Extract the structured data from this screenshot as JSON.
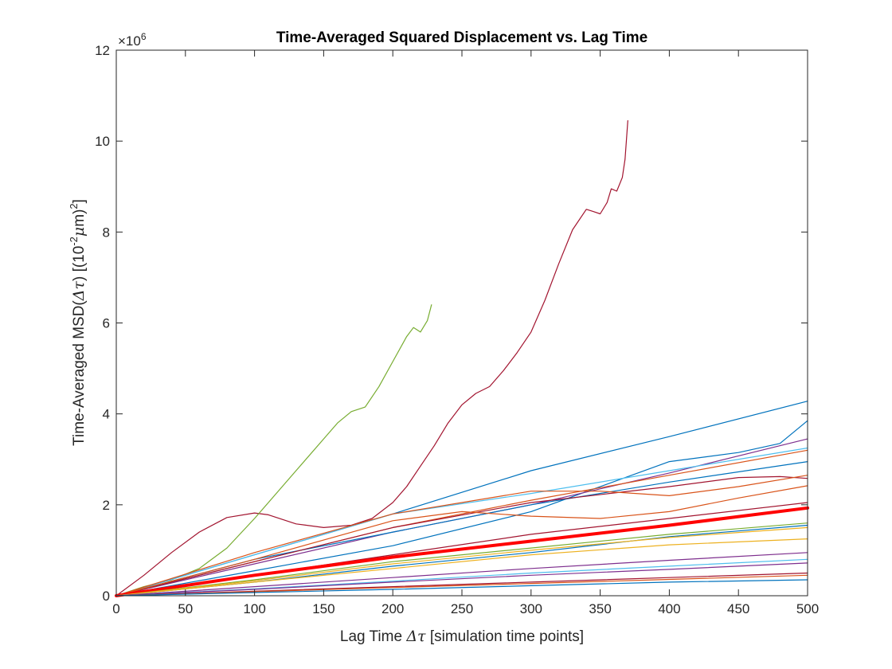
{
  "chart_data": {
    "type": "line",
    "title": "Time-Averaged Squared Displacement vs. Lag Time",
    "xlabel_parts": {
      "pre": "Lag Time ",
      "sym": "Δτ",
      "post": " [simulation time points]"
    },
    "ylabel_parts": {
      "pre": "Time-Averaged MSD(",
      "sym": "Δτ",
      "mid": ") [(10",
      "sup1": "-2",
      "mu": "μ",
      "m": "m)",
      "sup2": "2",
      "end": "]"
    },
    "y_exponent_label": {
      "base": "×10",
      "exp": "6"
    },
    "xlim": [
      0,
      500
    ],
    "ylim": [
      0,
      12
    ],
    "y_scale_factor": 1000000,
    "x_ticks": [
      0,
      50,
      100,
      150,
      200,
      250,
      300,
      350,
      400,
      450,
      500
    ],
    "y_ticks": [
      0,
      2,
      4,
      6,
      8,
      10,
      12
    ],
    "grid": false,
    "series": [
      {
        "color": "#A2142F",
        "width": 1.2,
        "x": [
          0,
          20,
          40,
          60,
          80,
          100,
          110,
          130,
          150,
          170,
          185,
          200,
          210,
          220,
          230,
          240,
          250,
          260,
          270,
          280,
          290,
          300,
          310,
          320,
          330,
          340,
          345,
          350,
          355,
          358,
          362,
          366,
          368,
          370
        ],
        "y": [
          0,
          0.45,
          0.95,
          1.4,
          1.72,
          1.82,
          1.78,
          1.58,
          1.5,
          1.55,
          1.7,
          2.05,
          2.4,
          2.85,
          3.3,
          3.8,
          4.2,
          4.45,
          4.6,
          4.95,
          5.35,
          5.8,
          6.5,
          7.3,
          8.05,
          8.5,
          8.45,
          8.4,
          8.65,
          8.95,
          8.9,
          9.2,
          9.6,
          10.45
        ]
      },
      {
        "color": "#77AC30",
        "width": 1.2,
        "x": [
          0,
          20,
          40,
          60,
          80,
          100,
          110,
          130,
          150,
          160,
          170,
          180,
          190,
          200,
          210,
          215,
          220,
          225,
          228
        ],
        "y": [
          0,
          0.2,
          0.35,
          0.6,
          1.05,
          1.7,
          2.05,
          2.75,
          3.45,
          3.8,
          4.05,
          4.15,
          4.6,
          5.15,
          5.7,
          5.9,
          5.8,
          6.05,
          6.4
        ]
      },
      {
        "color": "#0072BD",
        "width": 1.2,
        "x": [
          0,
          100,
          200,
          300,
          400,
          500
        ],
        "y": [
          0,
          0.9,
          1.8,
          2.75,
          3.5,
          4.28
        ]
      },
      {
        "color": "#0072BD",
        "width": 1.2,
        "x": [
          0,
          100,
          200,
          300,
          400,
          450,
          480,
          500
        ],
        "y": [
          0,
          0.55,
          1.1,
          1.85,
          2.95,
          3.15,
          3.35,
          3.85
        ]
      },
      {
        "color": "#7E2F8E",
        "width": 1.2,
        "x": [
          0,
          100,
          200,
          300,
          400,
          500
        ],
        "y": [
          0,
          0.7,
          1.4,
          2.0,
          2.7,
          3.45
        ]
      },
      {
        "color": "#4DBEEE",
        "width": 1.2,
        "x": [
          0,
          100,
          200,
          300,
          400,
          500
        ],
        "y": [
          0,
          0.9,
          1.8,
          2.25,
          2.75,
          3.25
        ]
      },
      {
        "color": "#D95319",
        "width": 1.2,
        "x": [
          0,
          100,
          200,
          300,
          400,
          500
        ],
        "y": [
          0,
          0.75,
          1.5,
          2.1,
          2.65,
          3.2
        ]
      },
      {
        "color": "#0072BD",
        "width": 1.2,
        "x": [
          0,
          100,
          200,
          300,
          400,
          500
        ],
        "y": [
          0,
          0.8,
          1.4,
          2.0,
          2.5,
          2.95
        ]
      },
      {
        "color": "#A2142F",
        "width": 1.2,
        "x": [
          0,
          100,
          200,
          300,
          400,
          450,
          480,
          500
        ],
        "y": [
          0,
          0.75,
          1.5,
          2.05,
          2.4,
          2.6,
          2.62,
          2.58
        ]
      },
      {
        "color": "#D95319",
        "width": 1.2,
        "x": [
          0,
          100,
          200,
          250,
          300,
          350,
          400,
          450,
          500
        ],
        "y": [
          0,
          0.95,
          1.8,
          2.05,
          2.3,
          2.3,
          2.2,
          2.4,
          2.65
        ]
      },
      {
        "color": "#D95319",
        "width": 1.2,
        "x": [
          0,
          100,
          200,
          250,
          300,
          350,
          400,
          450,
          500
        ],
        "y": [
          0,
          0.8,
          1.65,
          1.85,
          1.75,
          1.7,
          1.85,
          2.15,
          2.42
        ]
      },
      {
        "color": "#A2142F",
        "width": 1.2,
        "x": [
          0,
          100,
          200,
          300,
          400,
          500
        ],
        "y": [
          0,
          0.45,
          0.9,
          1.35,
          1.7,
          2.05
        ]
      },
      {
        "color": "#FF0000",
        "width": 4,
        "x": [
          0,
          100,
          200,
          300,
          400,
          500
        ],
        "y": [
          0,
          0.45,
          0.85,
          1.2,
          1.55,
          1.93
        ]
      },
      {
        "color": "#77AC30",
        "width": 1.2,
        "x": [
          0,
          100,
          200,
          300,
          400,
          500
        ],
        "y": [
          0,
          0.35,
          0.75,
          1.05,
          1.35,
          1.6
        ]
      },
      {
        "color": "#0072BD",
        "width": 1.2,
        "x": [
          0,
          100,
          200,
          300,
          400,
          500
        ],
        "y": [
          0,
          0.3,
          0.65,
          0.95,
          1.3,
          1.55
        ]
      },
      {
        "color": "#EDB120",
        "width": 1.2,
        "x": [
          0,
          100,
          200,
          300,
          400,
          500
        ],
        "y": [
          0,
          0.33,
          0.7,
          1.0,
          1.28,
          1.5
        ]
      },
      {
        "color": "#EDB120",
        "width": 1.2,
        "x": [
          0,
          100,
          200,
          300,
          400,
          500
        ],
        "y": [
          0,
          0.3,
          0.6,
          0.9,
          1.12,
          1.25
        ]
      },
      {
        "color": "#7E2F8E",
        "width": 1.2,
        "x": [
          0,
          100,
          200,
          300,
          400,
          500
        ],
        "y": [
          0,
          0.2,
          0.4,
          0.6,
          0.78,
          0.95
        ]
      },
      {
        "color": "#4DBEEE",
        "width": 1.2,
        "x": [
          0,
          100,
          200,
          300,
          400,
          500
        ],
        "y": [
          0,
          0.15,
          0.32,
          0.5,
          0.65,
          0.8
        ]
      },
      {
        "color": "#7E2F8E",
        "width": 1.2,
        "x": [
          0,
          100,
          200,
          300,
          400,
          500
        ],
        "y": [
          0,
          0.14,
          0.3,
          0.45,
          0.58,
          0.72
        ]
      },
      {
        "color": "#A2142F",
        "width": 1.2,
        "x": [
          0,
          100,
          200,
          300,
          400,
          500
        ],
        "y": [
          0,
          0.1,
          0.2,
          0.3,
          0.4,
          0.5
        ]
      },
      {
        "color": "#D95319",
        "width": 1.2,
        "x": [
          0,
          100,
          200,
          300,
          400,
          500
        ],
        "y": [
          0,
          0.09,
          0.18,
          0.27,
          0.36,
          0.45
        ]
      },
      {
        "color": "#0072BD",
        "width": 1.2,
        "x": [
          0,
          100,
          200,
          300,
          400,
          500
        ],
        "y": [
          0,
          0.07,
          0.14,
          0.22,
          0.3,
          0.35
        ]
      }
    ]
  }
}
